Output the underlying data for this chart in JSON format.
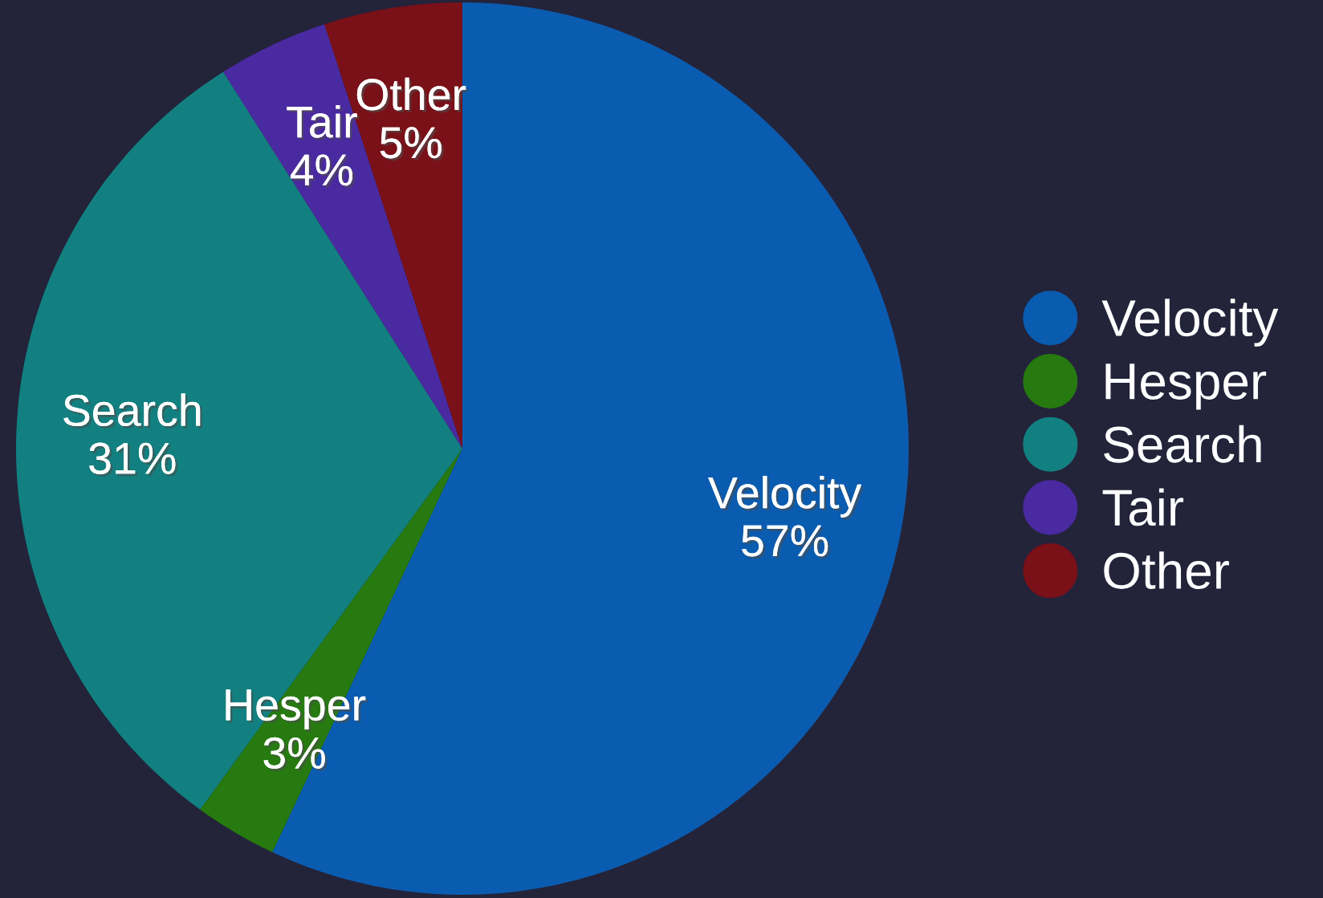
{
  "chart_data": {
    "type": "pie",
    "categories": [
      "Velocity",
      "Hesper",
      "Search",
      "Tair",
      "Other"
    ],
    "values": [
      57,
      3,
      31,
      4,
      5
    ],
    "value_labels": [
      "57%",
      "3%",
      "31%",
      "4%",
      "5%"
    ],
    "colors": [
      "#0a5cb0",
      "#267a10",
      "#128080",
      "#4a2aa0",
      "#7a1018"
    ],
    "legend": "right"
  }
}
